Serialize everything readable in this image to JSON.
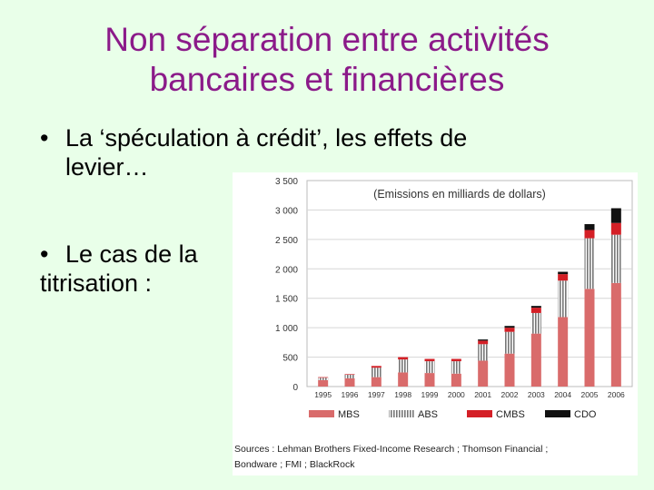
{
  "slide": {
    "title_line1": "Non séparation entre activités",
    "title_line2": "bancaires et financières",
    "bullet_marker": "•",
    "bullet1_line1": "La ‘spéculation à crédit’, les effets de",
    "bullet1_line2": "levier…",
    "bullet2_line1": "Le cas de la",
    "bullet2_line2": "titrisation :"
  },
  "chart_data": {
    "type": "bar",
    "stacked": true,
    "title": "(Emissions en milliards de dollars)",
    "categories": [
      "1995",
      "1996",
      "1997",
      "1998",
      "1999",
      "2000",
      "2001",
      "2002",
      "2003",
      "2004",
      "2005",
      "2006"
    ],
    "ylim": [
      0,
      3500
    ],
    "yticks": [
      0,
      500,
      1000,
      1500,
      2000,
      2500,
      3000,
      3500
    ],
    "ytick_labels": [
      "0",
      "500",
      "1 000",
      "1 500",
      "2 000",
      "2 500",
      "3 000",
      "3 500"
    ],
    "series": [
      {
        "name": "MBS",
        "color": "#d96b6b",
        "pattern": "solid",
        "values": [
          110,
          140,
          160,
          240,
          230,
          220,
          440,
          560,
          900,
          1180,
          1660,
          1760
        ]
      },
      {
        "name": "ABS",
        "color": "#777777",
        "pattern": "stripes",
        "values": [
          40,
          60,
          160,
          220,
          200,
          210,
          280,
          370,
          350,
          620,
          860,
          820
        ]
      },
      {
        "name": "CMBS",
        "color": "#d41f26",
        "pattern": "solid",
        "values": [
          10,
          10,
          30,
          40,
          40,
          40,
          60,
          70,
          90,
          110,
          140,
          200
        ]
      },
      {
        "name": "CDO",
        "color": "#111111",
        "pattern": "solid",
        "values": [
          0,
          0,
          0,
          0,
          0,
          0,
          20,
          30,
          30,
          40,
          100,
          250
        ]
      }
    ],
    "grid": true,
    "legend_position": "bottom",
    "source_line1": "Sources : Lehman Brothers Fixed-Income Research ; Thomson Financial ;",
    "source_line2": "Bondware ; FMI ; BlackRock"
  }
}
